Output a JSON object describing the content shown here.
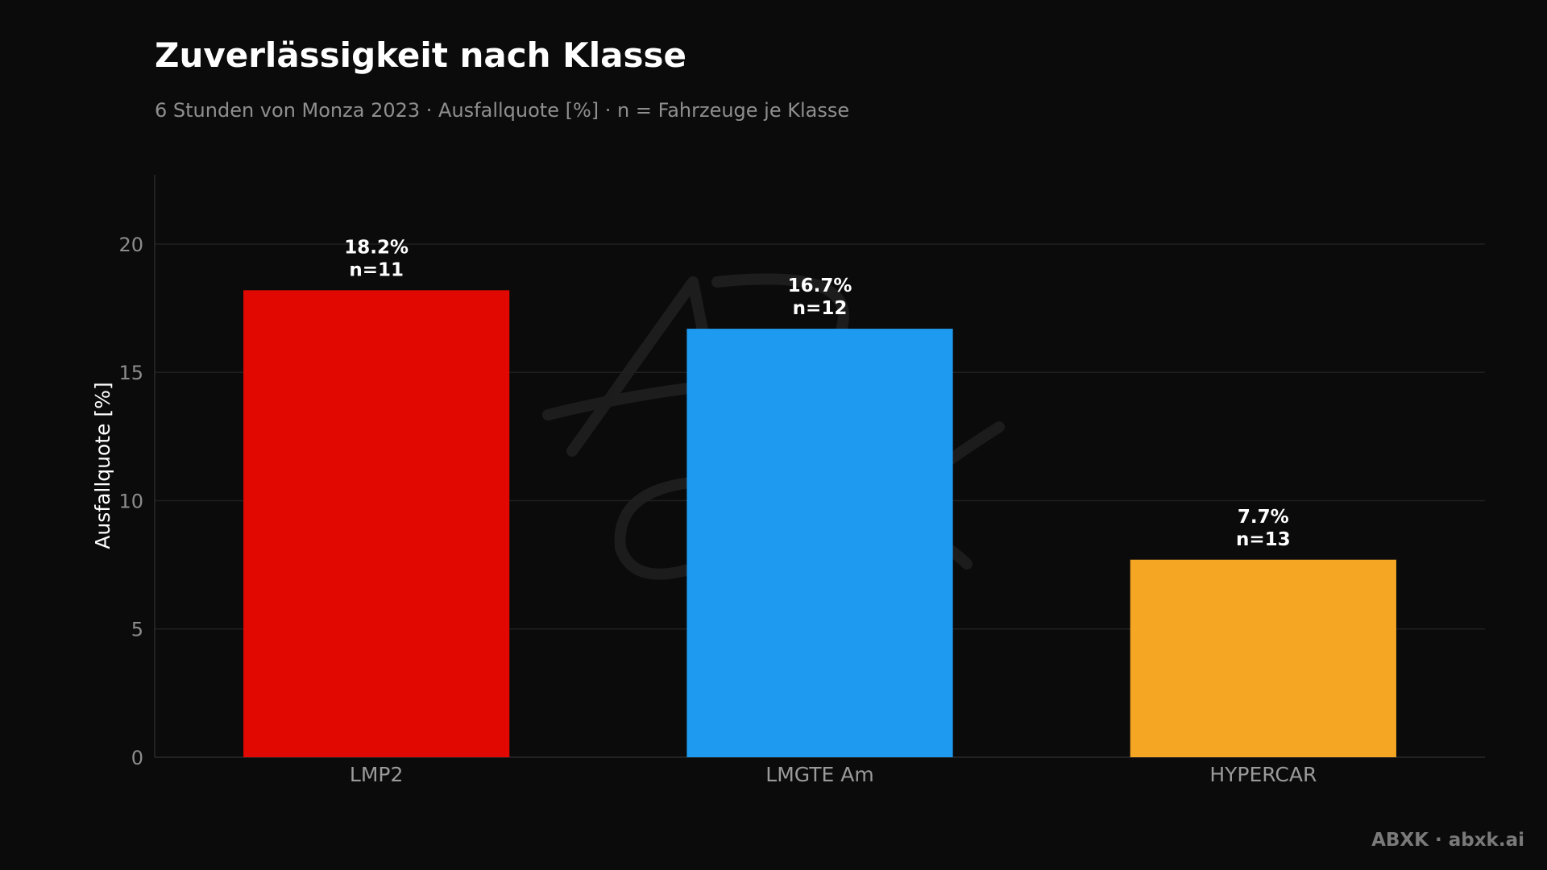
{
  "header": {
    "title": "Zuverlässigkeit nach Klasse",
    "subtitle": "6 Stunden von Monza 2023 · Ausfallquote [%] · n = Fahrzeuge je Klasse"
  },
  "footer": {
    "brand": "ABXK · abxk.ai"
  },
  "watermark": {
    "text": "ABXK"
  },
  "chart_data": {
    "type": "bar",
    "title": "Zuverlässigkeit nach Klasse",
    "subtitle": "6 Stunden von Monza 2023 · Ausfallquote [%] · n = Fahrzeuge je Klasse",
    "xlabel": "",
    "ylabel": "Ausfallquote [%]",
    "categories": [
      "LMP2",
      "LMGTE Am",
      "HYPERCAR"
    ],
    "values": [
      18.2,
      16.7,
      7.7
    ],
    "counts": [
      11,
      12,
      13
    ],
    "bar_labels": [
      [
        "18.2%",
        "n=11"
      ],
      [
        "16.7%",
        "n=12"
      ],
      [
        "7.7%",
        "n=13"
      ]
    ],
    "colors": [
      "#e00800",
      "#1e9bf0",
      "#f5a623"
    ],
    "yticks": [
      0,
      5,
      10,
      15,
      20
    ],
    "ylim": [
      0,
      22.7
    ],
    "grid": true,
    "legend": "none"
  }
}
